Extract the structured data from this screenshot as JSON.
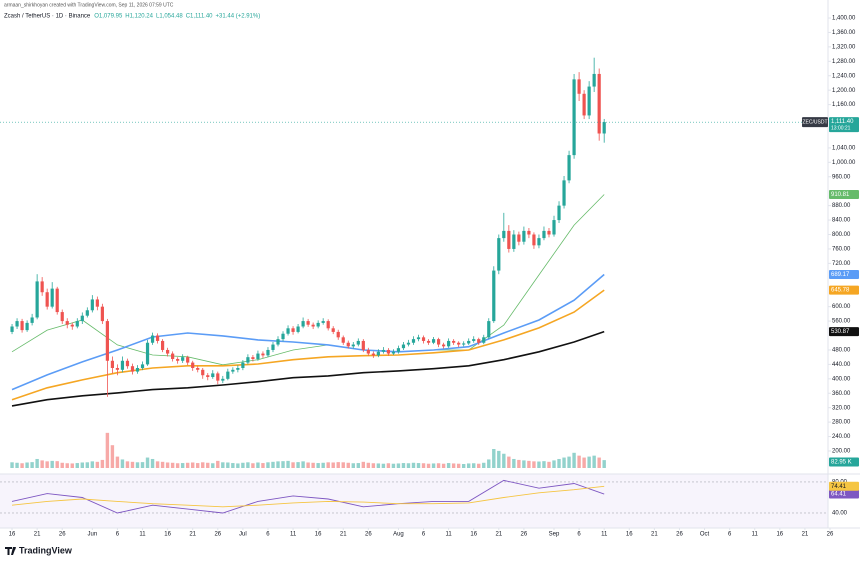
{
  "chart_data": {
    "type": "candlestick",
    "author_line": "armaan_shirkhoyan created with TradingView.com, Sep 11, 2026 07:59 UTC",
    "title": "Zcash / TetherUS · 1D · Binance",
    "ohlc_legend": [
      "O1,079.95",
      "H1,120.24",
      "L1,054.48",
      "C1,111.40",
      "+31.44 (+2.91%)"
    ],
    "up_color": "#26a69a",
    "down_color": "#ef5350",
    "xlim": [
      -2.4,
      162.6
    ],
    "xticks": [
      {
        "value": 0,
        "label": "16"
      },
      {
        "value": 5,
        "label": "21"
      },
      {
        "value": 10,
        "label": "26"
      },
      {
        "value": 16,
        "label": "Jun"
      },
      {
        "value": 21,
        "label": "6"
      },
      {
        "value": 26,
        "label": "11"
      },
      {
        "value": 31,
        "label": "16"
      },
      {
        "value": 36,
        "label": "21"
      },
      {
        "value": 41,
        "label": "26"
      },
      {
        "value": 46,
        "label": "Jul"
      },
      {
        "value": 51,
        "label": "6"
      },
      {
        "value": 56,
        "label": "11"
      },
      {
        "value": 61,
        "label": "16"
      },
      {
        "value": 66,
        "label": "21"
      },
      {
        "value": 71,
        "label": "26"
      },
      {
        "value": 77,
        "label": "Aug"
      },
      {
        "value": 82,
        "label": "6"
      },
      {
        "value": 87,
        "label": "11"
      },
      {
        "value": 92,
        "label": "16"
      },
      {
        "value": 97,
        "label": "21"
      },
      {
        "value": 102,
        "label": "26"
      },
      {
        "value": 108,
        "label": "Sep"
      },
      {
        "value": 113,
        "label": "6"
      },
      {
        "value": 118,
        "label": "11"
      },
      {
        "value": 123,
        "label": "16"
      },
      {
        "value": 128,
        "label": "21"
      },
      {
        "value": 133,
        "label": "26"
      },
      {
        "value": 138,
        "label": "Oct"
      },
      {
        "value": 143,
        "label": "6"
      },
      {
        "value": 148,
        "label": "11"
      },
      {
        "value": 153,
        "label": "16"
      },
      {
        "value": 158,
        "label": "21"
      },
      {
        "value": 163,
        "label": "26"
      }
    ],
    "ylim": [
      180,
      1420
    ],
    "yticks": [
      {
        "value": 200,
        "label": "200.00"
      },
      {
        "value": 240,
        "label": "240.00"
      },
      {
        "value": 280,
        "label": "280.00"
      },
      {
        "value": 320,
        "label": "320.00"
      },
      {
        "value": 360,
        "label": "360.00"
      },
      {
        "value": 400,
        "label": "400.00"
      },
      {
        "value": 440,
        "label": "440.00"
      },
      {
        "value": 480,
        "label": "480.00"
      },
      {
        "value": 560,
        "label": "560.00"
      },
      {
        "value": 600,
        "label": "600.00"
      },
      {
        "value": 720,
        "label": "720.00"
      },
      {
        "value": 760,
        "label": "760.00"
      },
      {
        "value": 800,
        "label": "800.00"
      },
      {
        "value": 840,
        "label": "840.00"
      },
      {
        "value": 880,
        "label": "880.00"
      },
      {
        "value": 960,
        "label": "960.00"
      },
      {
        "value": 1000,
        "label": "1,000.00"
      },
      {
        "value": 1040,
        "label": "1,040.00"
      },
      {
        "value": 1160,
        "label": "1,160.00"
      },
      {
        "value": 1200,
        "label": "1,200.00"
      },
      {
        "value": 1240,
        "label": "1,240.00"
      },
      {
        "value": 1280,
        "label": "1,280.00"
      },
      {
        "value": 1320,
        "label": "1,320.00"
      },
      {
        "value": 1360,
        "label": "1,360.00"
      },
      {
        "value": 1400,
        "label": "1,400.00"
      }
    ],
    "candles": [
      [
        530,
        552,
        524,
        545
      ],
      [
        545,
        568,
        538,
        560
      ],
      [
        560,
        566,
        528,
        535
      ],
      [
        535,
        562,
        530,
        555
      ],
      [
        555,
        580,
        548,
        570
      ],
      [
        570,
        690,
        565,
        670
      ],
      [
        670,
        682,
        630,
        640
      ],
      [
        640,
        650,
        592,
        600
      ],
      [
        600,
        668,
        595,
        650
      ],
      [
        650,
        655,
        578,
        585
      ],
      [
        585,
        592,
        552,
        560
      ],
      [
        560,
        568,
        540,
        550
      ],
      [
        550,
        556,
        536,
        545
      ],
      [
        545,
        568,
        540,
        560
      ],
      [
        560,
        584,
        552,
        575
      ],
      [
        575,
        598,
        570,
        590
      ],
      [
        590,
        632,
        584,
        620
      ],
      [
        620,
        628,
        590,
        600
      ],
      [
        600,
        608,
        552,
        560
      ],
      [
        560,
        566,
        350,
        450
      ],
      [
        450,
        462,
        415,
        430
      ],
      [
        430,
        440,
        410,
        425
      ],
      [
        425,
        462,
        418,
        450
      ],
      [
        450,
        456,
        428,
        435
      ],
      [
        435,
        442,
        412,
        420
      ],
      [
        420,
        438,
        414,
        430
      ],
      [
        430,
        448,
        424,
        440
      ],
      [
        440,
        508,
        436,
        500
      ],
      [
        500,
        528,
        494,
        520
      ],
      [
        520,
        526,
        498,
        505
      ],
      [
        505,
        510,
        474,
        480
      ],
      [
        480,
        486,
        462,
        470
      ],
      [
        470,
        476,
        448,
        455
      ],
      [
        455,
        460,
        442,
        450
      ],
      [
        450,
        468,
        444,
        460
      ],
      [
        460,
        464,
        438,
        445
      ],
      [
        445,
        450,
        422,
        430
      ],
      [
        430,
        436,
        418,
        425
      ],
      [
        425,
        430,
        400,
        410
      ],
      [
        410,
        416,
        396,
        405
      ],
      [
        405,
        424,
        400,
        415
      ],
      [
        415,
        420,
        385,
        395
      ],
      [
        395,
        408,
        388,
        400
      ],
      [
        400,
        428,
        396,
        420
      ],
      [
        420,
        432,
        414,
        425
      ],
      [
        425,
        438,
        418,
        430
      ],
      [
        430,
        452,
        424,
        445
      ],
      [
        445,
        468,
        440,
        460
      ],
      [
        460,
        466,
        448,
        455
      ],
      [
        455,
        478,
        450,
        470
      ],
      [
        470,
        476,
        458,
        465
      ],
      [
        465,
        488,
        460,
        480
      ],
      [
        480,
        502,
        474,
        495
      ],
      [
        495,
        518,
        490,
        510
      ],
      [
        510,
        532,
        504,
        525
      ],
      [
        525,
        548,
        520,
        540
      ],
      [
        540,
        546,
        522,
        530
      ],
      [
        530,
        552,
        526,
        545
      ],
      [
        545,
        570,
        540,
        560
      ],
      [
        560,
        566,
        544,
        550
      ],
      [
        550,
        556,
        538,
        545
      ],
      [
        545,
        562,
        540,
        555
      ],
      [
        555,
        568,
        550,
        560
      ],
      [
        560,
        565,
        534,
        540
      ],
      [
        540,
        546,
        524,
        530
      ],
      [
        530,
        536,
        508,
        515
      ],
      [
        515,
        520,
        494,
        500
      ],
      [
        500,
        506,
        484,
        490
      ],
      [
        490,
        502,
        484,
        495
      ],
      [
        495,
        512,
        490,
        505
      ],
      [
        505,
        510,
        474,
        480
      ],
      [
        480,
        486,
        464,
        470
      ],
      [
        470,
        476,
        458,
        465
      ],
      [
        465,
        482,
        460,
        475
      ],
      [
        475,
        488,
        470,
        480
      ],
      [
        480,
        485,
        464,
        470
      ],
      [
        470,
        482,
        466,
        475
      ],
      [
        475,
        492,
        470,
        485
      ],
      [
        485,
        502,
        480,
        495
      ],
      [
        495,
        508,
        490,
        500
      ],
      [
        500,
        518,
        494,
        510
      ],
      [
        510,
        522,
        504,
        515
      ],
      [
        515,
        520,
        498,
        505
      ],
      [
        505,
        510,
        494,
        500
      ],
      [
        500,
        516,
        496,
        510
      ],
      [
        510,
        514,
        488,
        495
      ],
      [
        495,
        500,
        484,
        490
      ],
      [
        490,
        512,
        486,
        505
      ],
      [
        505,
        510,
        494,
        500
      ],
      [
        500,
        504,
        488,
        495
      ],
      [
        495,
        504,
        490,
        498
      ],
      [
        498,
        512,
        494,
        505
      ],
      [
        505,
        518,
        500,
        510
      ],
      [
        510,
        514,
        494,
        500
      ],
      [
        500,
        522,
        496,
        515
      ],
      [
        515,
        568,
        510,
        560
      ],
      [
        560,
        712,
        555,
        700
      ],
      [
        700,
        800,
        690,
        790
      ],
      [
        790,
        860,
        780,
        810
      ],
      [
        810,
        826,
        750,
        760
      ],
      [
        760,
        812,
        752,
        800
      ],
      [
        800,
        808,
        770,
        780
      ],
      [
        780,
        822,
        772,
        810
      ],
      [
        810,
        818,
        790,
        800
      ],
      [
        800,
        806,
        760,
        770
      ],
      [
        770,
        800,
        762,
        790
      ],
      [
        790,
        822,
        784,
        810
      ],
      [
        810,
        818,
        792,
        800
      ],
      [
        800,
        852,
        794,
        840
      ],
      [
        840,
        892,
        832,
        880
      ],
      [
        880,
        962,
        872,
        950
      ],
      [
        950,
        1032,
        942,
        1020
      ],
      [
        1020,
        1245,
        1010,
        1230
      ],
      [
        1230,
        1250,
        1170,
        1190
      ],
      [
        1190,
        1200,
        1120,
        1130
      ],
      [
        1130,
        1225,
        1120,
        1210
      ],
      [
        1210,
        1290,
        1195,
        1245
      ],
      [
        1245,
        1260,
        1060,
        1079.95
      ],
      [
        1079.95,
        1120.24,
        1054.48,
        1111.4
      ]
    ],
    "last_price_label": "1,111.40",
    "symbol_tag": "ZEC/USDT",
    "countdown": "13:00:21",
    "ma_days": [
      0,
      7,
      14,
      21,
      28,
      35,
      42,
      49,
      56,
      63,
      70,
      77,
      84,
      91,
      98,
      105,
      112,
      118
    ],
    "ma_lines": [
      {
        "color": "#66bb6a",
        "values": [
          475,
          535,
          563,
          494,
          466,
          461,
          439,
          453,
          480,
          494,
          480,
          475,
          480,
          480,
          549,
          688,
          826,
          910.81
        ],
        "last_label": "910.81"
      },
      {
        "color": "#5b9cf6",
        "values": [
          370,
          411,
          447,
          480,
          516,
          527,
          519,
          508,
          502,
          494,
          480,
          475,
          480,
          489,
          527,
          563,
          618,
          689.17
        ],
        "last_label": "689.17"
      },
      {
        "color": "#f5a623",
        "values": [
          342,
          375,
          397,
          417,
          430,
          436,
          436,
          441,
          453,
          461,
          464,
          466,
          472,
          480,
          508,
          541,
          585,
          645.78
        ],
        "last_label": "645.78"
      },
      {
        "color": "#111111",
        "values": [
          325,
          342,
          353,
          361,
          370,
          375,
          383,
          392,
          403,
          408,
          417,
          422,
          428,
          436,
          453,
          475,
          502,
          530.87
        ],
        "last_label": "530.87"
      }
    ],
    "volume": {
      "values": [
        60,
        55,
        50,
        58,
        62,
        95,
        80,
        70,
        75,
        72,
        55,
        50,
        48,
        52,
        58,
        60,
        70,
        65,
        85,
        370,
        240,
        120,
        90,
        70,
        65,
        60,
        62,
        110,
        95,
        70,
        65,
        58,
        55,
        50,
        52,
        55,
        58,
        52,
        60,
        55,
        50,
        75,
        60,
        58,
        52,
        48,
        55,
        60,
        50,
        58,
        52,
        60,
        65,
        70,
        72,
        75,
        60,
        62,
        70,
        58,
        55,
        52,
        55,
        60,
        58,
        62,
        60,
        55,
        50,
        52,
        65,
        55,
        50,
        48,
        45,
        50,
        45,
        48,
        52,
        50,
        55,
        52,
        50,
        45,
        48,
        50,
        45,
        52,
        48,
        45,
        42,
        48,
        50,
        45,
        55,
        90,
        200,
        180,
        150,
        120,
        95,
        85,
        80,
        75,
        70,
        68,
        72,
        65,
        80,
        95,
        110,
        120,
        160,
        130,
        110,
        120,
        130,
        110,
        82.95
      ],
      "last_label": "82.95 K"
    },
    "rsi": {
      "ylim": [
        20,
        90
      ],
      "yticks": [
        {
          "value": 80,
          "label": "80.00"
        },
        {
          "value": 40,
          "label": "40.00"
        }
      ],
      "series": [
        {
          "color": "#7e57c2",
          "values": [
            55,
            65,
            60,
            40,
            50,
            45,
            40,
            55,
            62,
            58,
            48,
            52,
            55,
            55,
            82,
            72,
            78,
            64.41
          ],
          "last_label": "64.41"
        },
        {
          "color": "#f5c542",
          "values": [
            50,
            55,
            58,
            55,
            52,
            50,
            48,
            50,
            53,
            55,
            54,
            52,
            52,
            53,
            60,
            66,
            70,
            74.41
          ],
          "last_label": "74.41"
        }
      ]
    },
    "brand": "TradingView"
  }
}
